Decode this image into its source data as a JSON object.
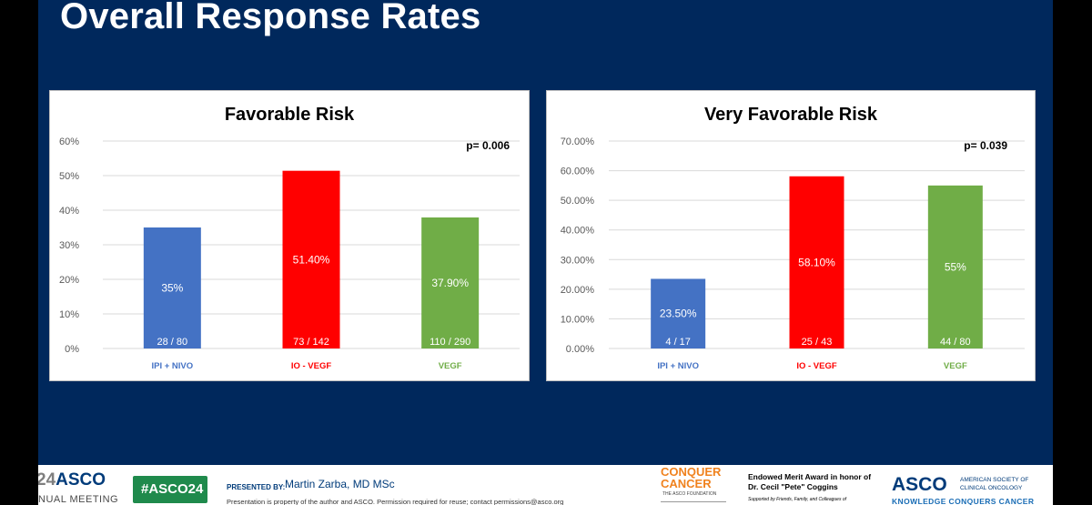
{
  "slide": {
    "title": "Overall Response Rates"
  },
  "colors": {
    "blue": "#4472c4",
    "red": "#ff0000",
    "green": "#70ad47",
    "background": "#00285c"
  },
  "chart_data": [
    {
      "type": "bar",
      "title": "Favorable Risk",
      "annotation": "p= 0.006",
      "categories": [
        "IPI + NIVO",
        "IO - VEGF",
        "VEGF"
      ],
      "values": [
        35,
        51.4,
        37.9
      ],
      "value_labels": [
        "35%",
        "51.40%",
        "37.90%"
      ],
      "count_labels": [
        "28 / 80",
        "73 / 142",
        "110 / 290"
      ],
      "colors": [
        "#4472c4",
        "#ff0000",
        "#70ad47"
      ],
      "yticks": [
        0,
        10,
        20,
        30,
        40,
        50,
        60
      ],
      "ytick_labels": [
        "0%",
        "10%",
        "20%",
        "30%",
        "40%",
        "50%",
        "60%"
      ],
      "ylim": [
        0,
        60
      ],
      "grid": true
    },
    {
      "type": "bar",
      "title": "Very Favorable Risk",
      "annotation": "p= 0.039",
      "categories": [
        "IPI + NIVO",
        "IO - VEGF",
        "VEGF"
      ],
      "values": [
        23.5,
        58.1,
        55
      ],
      "value_labels": [
        "23.50%",
        "58.10%",
        "55%"
      ],
      "count_labels": [
        "4 / 17",
        "25 / 43",
        "44 / 80"
      ],
      "colors": [
        "#4472c4",
        "#ff0000",
        "#70ad47"
      ],
      "yticks": [
        0,
        10,
        20,
        30,
        40,
        50,
        60,
        70
      ],
      "ytick_labels": [
        "0.00%",
        "10.00%",
        "20.00%",
        "30.00%",
        "40.00%",
        "50.00%",
        "60.00%",
        "70.00%"
      ],
      "ylim": [
        0,
        70
      ],
      "grid": true
    }
  ],
  "footer": {
    "meeting_logo_year": "24",
    "meeting_logo_brand": "ASCO",
    "meeting_logo_sub": "NUAL MEETING",
    "hashtag": "#ASCO24",
    "presented_by_label": "PRESENTED BY:",
    "presenter": "Martin Zarba, MD MSc",
    "disclaimer": "Presentation is property of the author and ASCO. Permission required for reuse; contact permissions@asco.org",
    "conquer_line1": "CONQUER",
    "conquer_line2": "CANCER",
    "conquer_sub": "THE ASCO FOUNDATION",
    "award_line1": "Endowed Merit Award in honor of",
    "award_line2": "Dr. Cecil \"Pete\" Coggins",
    "award_line3": "Supported by Friends, Family, and Colleagues of",
    "asco_logo": "ASCO",
    "asco_full_line1": "AMERICAN SOCIETY OF",
    "asco_full_line2": "CLINICAL ONCOLOGY",
    "asco_tagline": "KNOWLEDGE CONQUERS CANCER"
  }
}
